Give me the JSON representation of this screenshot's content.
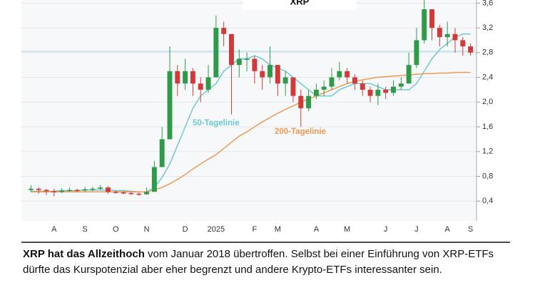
{
  "chart_data": {
    "type": "candlestick",
    "title": "XRP",
    "categories": [
      null,
      null,
      null,
      "A",
      null,
      null,
      null,
      "S",
      null,
      null,
      null,
      "O",
      null,
      null,
      null,
      "N",
      null,
      null,
      null,
      null,
      "D",
      null,
      null,
      null,
      "2025",
      null,
      null,
      null,
      null,
      "F",
      null,
      null,
      "M",
      null,
      null,
      null,
      null,
      "A",
      null,
      null,
      null,
      "M",
      null,
      null,
      null,
      null,
      "J",
      null,
      null,
      null,
      "J",
      null,
      null,
      null,
      "A",
      null,
      null,
      "S"
    ],
    "series": [
      {
        "name": "XRP",
        "up_color": "#2e9a4a",
        "down_color": "#d23a3a",
        "open": [
          0.58,
          0.6,
          0.58,
          0.56,
          0.55,
          0.57,
          0.58,
          0.57,
          0.59,
          0.6,
          0.62,
          0.55,
          0.54,
          0.53,
          0.52,
          0.51,
          0.55,
          0.95,
          1.4,
          2.5,
          2.3,
          2.5,
          2.3,
          2.2,
          2.4,
          3.2,
          3.1,
          2.6,
          2.7,
          2.7,
          2.5,
          2.4,
          2.6,
          2.3,
          2.4,
          2.1,
          1.9,
          2.1,
          2.2,
          2.25,
          2.4,
          2.5,
          2.4,
          2.3,
          2.2,
          2.1,
          2.2,
          2.15,
          2.25,
          2.3,
          2.6,
          3.0,
          3.5,
          3.2,
          3.05,
          3.1,
          3.0,
          2.9
        ],
        "high": [
          0.66,
          0.62,
          0.6,
          0.6,
          0.61,
          0.62,
          0.6,
          0.63,
          0.63,
          0.66,
          0.64,
          0.57,
          0.56,
          0.55,
          0.54,
          0.62,
          1.05,
          1.6,
          2.9,
          2.6,
          2.7,
          2.55,
          2.4,
          2.6,
          3.4,
          3.3,
          3.1,
          2.85,
          2.8,
          2.75,
          2.6,
          2.9,
          2.6,
          2.5,
          2.4,
          2.2,
          2.2,
          2.3,
          2.35,
          2.55,
          2.65,
          2.55,
          2.45,
          2.35,
          2.25,
          2.3,
          2.25,
          2.35,
          2.4,
          2.8,
          3.2,
          3.65,
          3.5,
          3.25,
          3.3,
          3.2,
          3.05,
          2.95
        ],
        "low": [
          0.55,
          0.52,
          0.5,
          0.48,
          0.53,
          0.55,
          0.54,
          0.55,
          0.56,
          0.58,
          0.52,
          0.52,
          0.51,
          0.5,
          0.49,
          0.5,
          0.55,
          0.95,
          1.4,
          2.1,
          2.2,
          2.1,
          2.0,
          2.15,
          2.4,
          2.9,
          1.8,
          2.4,
          2.5,
          2.3,
          2.2,
          2.3,
          2.1,
          2.1,
          2.0,
          1.6,
          1.85,
          2.05,
          2.1,
          2.2,
          2.35,
          2.3,
          2.2,
          2.1,
          2.0,
          1.95,
          2.05,
          2.1,
          2.2,
          2.3,
          2.55,
          2.95,
          3.0,
          2.9,
          2.9,
          2.8,
          2.75,
          2.75
        ],
        "close": [
          0.6,
          0.58,
          0.56,
          0.55,
          0.57,
          0.58,
          0.57,
          0.59,
          0.6,
          0.62,
          0.55,
          0.54,
          0.53,
          0.52,
          0.51,
          0.55,
          0.95,
          1.4,
          2.5,
          2.3,
          2.5,
          2.3,
          2.2,
          2.4,
          3.2,
          3.1,
          2.6,
          2.7,
          2.7,
          2.5,
          2.4,
          2.6,
          2.3,
          2.4,
          2.1,
          1.9,
          2.1,
          2.2,
          2.25,
          2.4,
          2.5,
          2.4,
          2.3,
          2.2,
          2.1,
          2.2,
          2.15,
          2.25,
          2.3,
          2.6,
          3.0,
          3.5,
          3.2,
          3.05,
          3.1,
          3.0,
          2.9,
          2.8
        ]
      }
    ],
    "lines": [
      {
        "name": "50-Tagelinie",
        "color": "#6ec9d2",
        "values": [
          0.56,
          0.56,
          0.56,
          0.56,
          0.57,
          0.57,
          0.57,
          0.58,
          0.58,
          0.58,
          0.58,
          0.57,
          0.57,
          0.56,
          0.55,
          0.55,
          0.62,
          0.78,
          1.0,
          1.3,
          1.6,
          1.9,
          2.1,
          2.2,
          2.3,
          2.5,
          2.6,
          2.7,
          2.7,
          2.75,
          2.7,
          2.6,
          2.55,
          2.5,
          2.4,
          2.3,
          2.2,
          2.1,
          2.1,
          2.1,
          2.2,
          2.25,
          2.3,
          2.3,
          2.3,
          2.25,
          2.2,
          2.2,
          2.2,
          2.2,
          2.3,
          2.5,
          2.7,
          2.85,
          2.95,
          3.05,
          3.1,
          3.1
        ]
      },
      {
        "name": "200-Tagelinie",
        "color": "#ee9a55",
        "values": [
          0.55,
          0.55,
          0.55,
          0.55,
          0.55,
          0.55,
          0.55,
          0.55,
          0.55,
          0.55,
          0.55,
          0.55,
          0.55,
          0.55,
          0.55,
          0.55,
          0.58,
          0.62,
          0.68,
          0.75,
          0.83,
          0.92,
          1.0,
          1.08,
          1.15,
          1.25,
          1.35,
          1.45,
          1.52,
          1.6,
          1.68,
          1.75,
          1.82,
          1.88,
          1.94,
          2.0,
          2.05,
          2.1,
          2.15,
          2.2,
          2.25,
          2.3,
          2.33,
          2.36,
          2.38,
          2.4,
          2.41,
          2.42,
          2.43,
          2.44,
          2.45,
          2.46,
          2.46,
          2.47,
          2.47,
          2.48,
          2.48,
          2.48
        ]
      }
    ],
    "reference_line": 2.82,
    "ylim": [
      0.08,
      3.65
    ],
    "yticks": [
      {
        "value": 0.4,
        "label": "0,4"
      },
      {
        "value": 0.8,
        "label": "0,8"
      },
      {
        "value": 1.2,
        "label": "1,2"
      },
      {
        "value": 1.6,
        "label": "1,6"
      },
      {
        "value": 2.0,
        "label": "2,0"
      },
      {
        "value": 2.4,
        "label": "2,4"
      },
      {
        "value": 2.8,
        "label": "2,8"
      },
      {
        "value": 3.2,
        "label": "3,2"
      },
      {
        "value": 3.6,
        "label": "3,6"
      }
    ],
    "grid": true
  },
  "caption": {
    "lead": "XRP hat das Allzeithoch",
    "text": " vom Januar 2018 übertroffen. Selbst bei einer Einführung von XRP-ETFs dürfte das Kurspotenzial aber eher begrenzt und andere Krypto-ETFs interessanter sein."
  }
}
